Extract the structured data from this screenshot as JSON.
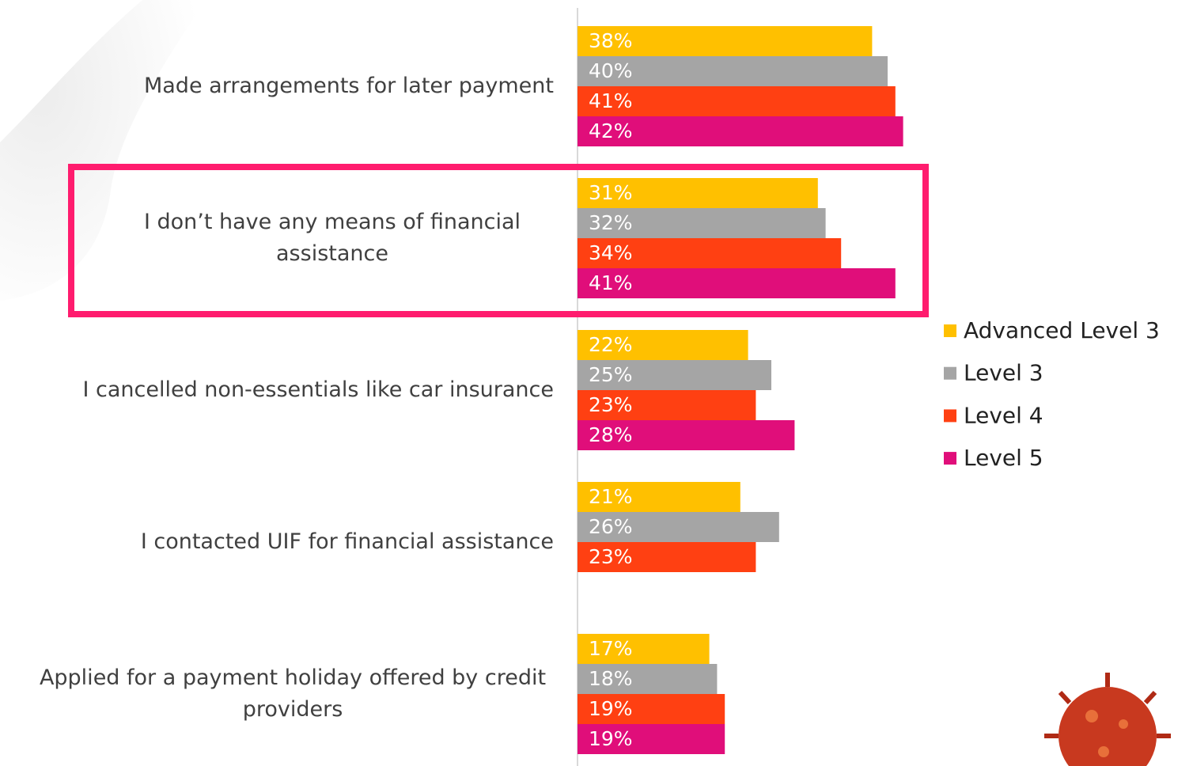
{
  "chart_data": {
    "type": "bar",
    "orientation": "horizontal",
    "categories": [
      "Made arrangements for later payment",
      "I don’t have any means of financial assistance",
      "I cancelled non-essentials like car insurance",
      "I contacted UIF for financial assistance",
      "Applied for a payment holiday offered by credit providers"
    ],
    "series": [
      {
        "name": "Advanced Level 3",
        "color": "#ffc000",
        "values": [
          38,
          31,
          22,
          21,
          17
        ],
        "value_labels": [
          "38%",
          "31%",
          "22%",
          "21%",
          "17%"
        ]
      },
      {
        "name": "Level 3",
        "color": "#a5a5a5",
        "values": [
          40,
          32,
          25,
          26,
          18
        ],
        "value_labels": [
          "40%",
          "32%",
          "25%",
          "26%",
          "18%"
        ]
      },
      {
        "name": "Level 4",
        "color": "#ff4012",
        "values": [
          41,
          34,
          23,
          23,
          19
        ],
        "value_labels": [
          "41%",
          "34%",
          "23%",
          "23%",
          "19%"
        ]
      },
      {
        "name": "Level 5",
        "color": "#e00e7a",
        "values": [
          42,
          41,
          28,
          null,
          19
        ],
        "value_labels": [
          "42%",
          "41%",
          "28%",
          null,
          "19%"
        ]
      }
    ],
    "legend": "right"
  }
}
